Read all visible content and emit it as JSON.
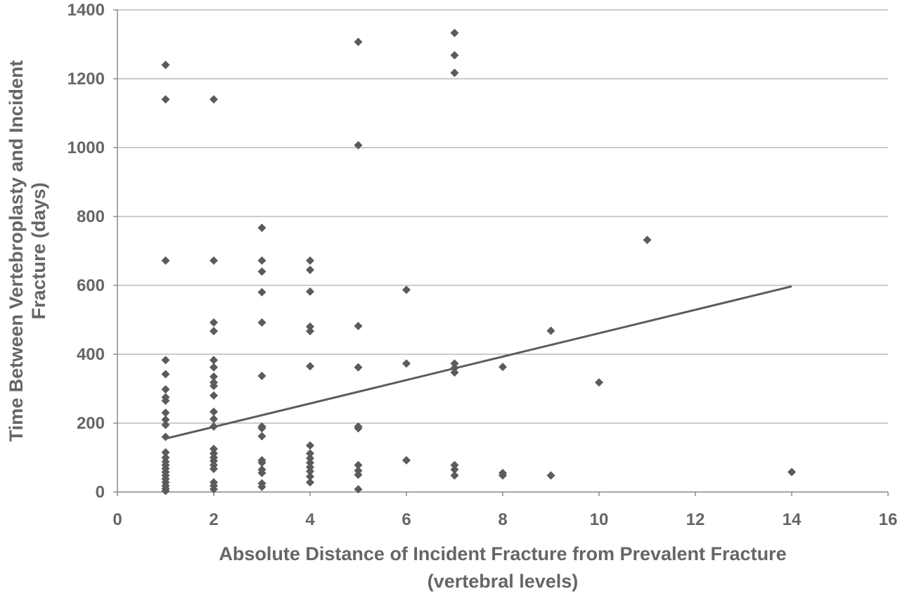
{
  "chart_data": {
    "type": "scatter",
    "title": "",
    "xlabel_lines": [
      "Absolute Distance of Incident Fracture from Prevalent Fracture",
      "(vertebral levels)"
    ],
    "ylabel_lines": [
      "Time Between Vertebroplasty and Incident",
      "Fracture (days)"
    ],
    "xlim": [
      0,
      16
    ],
    "ylim": [
      0,
      1400
    ],
    "x_ticks": [
      0,
      2,
      4,
      6,
      8,
      10,
      12,
      14,
      16
    ],
    "y_ticks": [
      0,
      200,
      400,
      600,
      800,
      1000,
      1200,
      1400
    ],
    "grid": "horizontal",
    "legend": "none",
    "marker": "diamond",
    "marker_color": "#5b5b5b",
    "series": [
      {
        "points": [
          [
            1,
            1240
          ],
          [
            1,
            1140
          ],
          [
            1,
            672
          ],
          [
            1,
            383
          ],
          [
            1,
            342
          ],
          [
            1,
            298
          ],
          [
            1,
            275
          ],
          [
            1,
            265
          ],
          [
            1,
            230
          ],
          [
            1,
            210
          ],
          [
            1,
            195
          ],
          [
            1,
            160
          ],
          [
            1,
            115
          ],
          [
            1,
            100
          ],
          [
            1,
            88
          ],
          [
            1,
            78
          ],
          [
            1,
            68
          ],
          [
            1,
            58
          ],
          [
            1,
            48
          ],
          [
            1,
            38
          ],
          [
            1,
            28
          ],
          [
            1,
            18
          ],
          [
            1,
            10
          ],
          [
            1,
            3
          ],
          [
            2,
            1140
          ],
          [
            2,
            672
          ],
          [
            2,
            492
          ],
          [
            2,
            467
          ],
          [
            2,
            383
          ],
          [
            2,
            362
          ],
          [
            2,
            335
          ],
          [
            2,
            318
          ],
          [
            2,
            308
          ],
          [
            2,
            280
          ],
          [
            2,
            233
          ],
          [
            2,
            212
          ],
          [
            2,
            190
          ],
          [
            2,
            125
          ],
          [
            2,
            112
          ],
          [
            2,
            100
          ],
          [
            2,
            90
          ],
          [
            2,
            78
          ],
          [
            2,
            67
          ],
          [
            2,
            28
          ],
          [
            2,
            18
          ],
          [
            2,
            8
          ],
          [
            3,
            767
          ],
          [
            3,
            672
          ],
          [
            3,
            640
          ],
          [
            3,
            580
          ],
          [
            3,
            492
          ],
          [
            3,
            337
          ],
          [
            3,
            190
          ],
          [
            3,
            185
          ],
          [
            3,
            162
          ],
          [
            3,
            92
          ],
          [
            3,
            85
          ],
          [
            3,
            65
          ],
          [
            3,
            55
          ],
          [
            3,
            25
          ],
          [
            3,
            15
          ],
          [
            4,
            672
          ],
          [
            4,
            645
          ],
          [
            4,
            582
          ],
          [
            4,
            480
          ],
          [
            4,
            467
          ],
          [
            4,
            365
          ],
          [
            4,
            135
          ],
          [
            4,
            112
          ],
          [
            4,
            98
          ],
          [
            4,
            85
          ],
          [
            4,
            72
          ],
          [
            4,
            60
          ],
          [
            4,
            45
          ],
          [
            4,
            28
          ],
          [
            5,
            1307
          ],
          [
            5,
            1007
          ],
          [
            5,
            482
          ],
          [
            5,
            362
          ],
          [
            5,
            190
          ],
          [
            5,
            185
          ],
          [
            5,
            78
          ],
          [
            5,
            62
          ],
          [
            5,
            50
          ],
          [
            5,
            8
          ],
          [
            6,
            587
          ],
          [
            6,
            373
          ],
          [
            6,
            92
          ],
          [
            7,
            1333
          ],
          [
            7,
            1268
          ],
          [
            7,
            1217
          ],
          [
            7,
            373
          ],
          [
            7,
            360
          ],
          [
            7,
            347
          ],
          [
            7,
            78
          ],
          [
            7,
            65
          ],
          [
            7,
            48
          ],
          [
            8,
            363
          ],
          [
            8,
            55
          ],
          [
            8,
            48
          ],
          [
            9,
            468
          ],
          [
            9,
            48
          ],
          [
            10,
            318
          ],
          [
            11,
            732
          ],
          [
            14,
            58
          ]
        ]
      }
    ],
    "trendline": {
      "type": "linear",
      "x": [
        1,
        14
      ],
      "y": [
        155,
        597
      ]
    }
  }
}
